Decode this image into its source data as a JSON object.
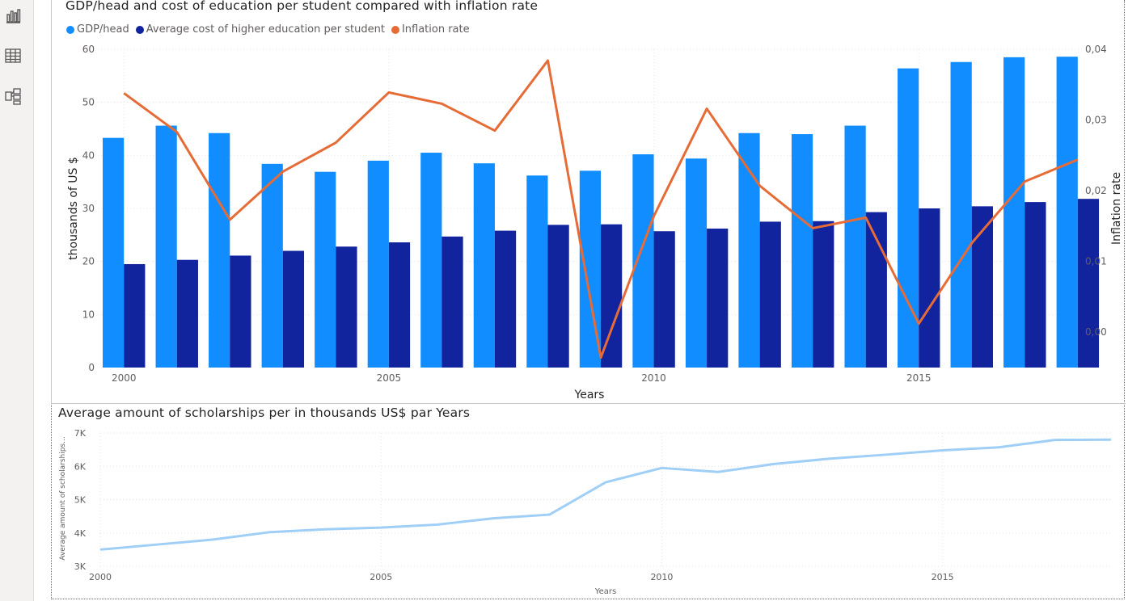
{
  "sidebar": {
    "items": [
      {
        "icon": "report-view-icon",
        "label": "Report"
      },
      {
        "icon": "data-view-icon",
        "label": "Data"
      },
      {
        "icon": "model-view-icon",
        "label": "Model"
      }
    ]
  },
  "colors": {
    "gdp": "#118DFF",
    "education": "#12239E",
    "inflation": "#E66C37",
    "scholarship": "#9FCFF7",
    "axis_text": "#605e5c",
    "grid": "#e6e6e6"
  },
  "chart_data": [
    {
      "type": "bar",
      "combo_line": true,
      "title": "GDP/head and cost of education per student compared with inflation rate",
      "legend": [
        "GDP/head",
        "Average cost of higher education per student",
        "Inflation rate"
      ],
      "legend_position": "top-left",
      "xlabel": "Years",
      "ylabel": "thousands of US $",
      "y2label": "Inflation rate",
      "x": [
        2000,
        2001,
        2002,
        2003,
        2004,
        2005,
        2006,
        2007,
        2008,
        2009,
        2010,
        2011,
        2012,
        2013,
        2014,
        2015,
        2016,
        2017,
        2018
      ],
      "x_ticks": [
        "2000",
        "2005",
        "2010",
        "2015"
      ],
      "ylim": [
        0,
        60
      ],
      "y_ticks": [
        "0",
        "10",
        "20",
        "30",
        "40",
        "50",
        "60"
      ],
      "y2lim": [
        -0.005,
        0.04
      ],
      "y2_ticks": [
        "0,00",
        "0,01",
        "0,02",
        "0,03",
        "0,04"
      ],
      "series": [
        {
          "name": "GDP/head",
          "kind": "bar",
          "axis": "left",
          "values": [
            43.3,
            45.6,
            44.2,
            38.4,
            36.9,
            39.0,
            40.5,
            38.5,
            36.2,
            37.1,
            40.2,
            39.4,
            44.2,
            44.0,
            45.6,
            56.4,
            57.6,
            58.5,
            58.6
          ]
        },
        {
          "name": "Average cost of higher education per student",
          "kind": "bar",
          "axis": "left",
          "values": [
            19.5,
            20.3,
            21.1,
            22.0,
            22.8,
            23.6,
            24.7,
            25.8,
            26.9,
            27.0,
            25.7,
            26.2,
            27.5,
            27.6,
            29.3,
            30.0,
            30.4,
            31.2,
            31.8
          ]
        },
        {
          "name": "Inflation rate",
          "kind": "line",
          "axis": "right",
          "values": [
            0.0338,
            0.0283,
            0.0159,
            0.0227,
            0.0268,
            0.0339,
            0.0323,
            0.0285,
            0.0384,
            -0.0036,
            0.0164,
            0.0316,
            0.0207,
            0.0147,
            0.0162,
            0.0012,
            0.0126,
            0.0213,
            0.0244
          ]
        }
      ],
      "grid": true
    },
    {
      "type": "line",
      "title": "Average amount of scholarships per in thousands US$ par Years",
      "xlabel": "Years",
      "ylabel": "Average amount of scholarships...",
      "x": [
        2000,
        2001,
        2002,
        2003,
        2004,
        2005,
        2006,
        2007,
        2008,
        2009,
        2010,
        2011,
        2012,
        2013,
        2014,
        2015,
        2016,
        2017,
        2018
      ],
      "x_ticks": [
        "2000",
        "2005",
        "2010",
        "2015"
      ],
      "ylim": [
        3000,
        7000
      ],
      "y_ticks": [
        "3K",
        "4K",
        "5K",
        "6K",
        "7K"
      ],
      "series": [
        {
          "name": "Average amount of scholarships",
          "values": [
            3500,
            3650,
            3800,
            4020,
            4110,
            4160,
            4250,
            4440,
            4550,
            5520,
            5950,
            5830,
            6070,
            6230,
            6350,
            6480,
            6570,
            6790,
            6800
          ]
        }
      ],
      "grid": true
    }
  ]
}
